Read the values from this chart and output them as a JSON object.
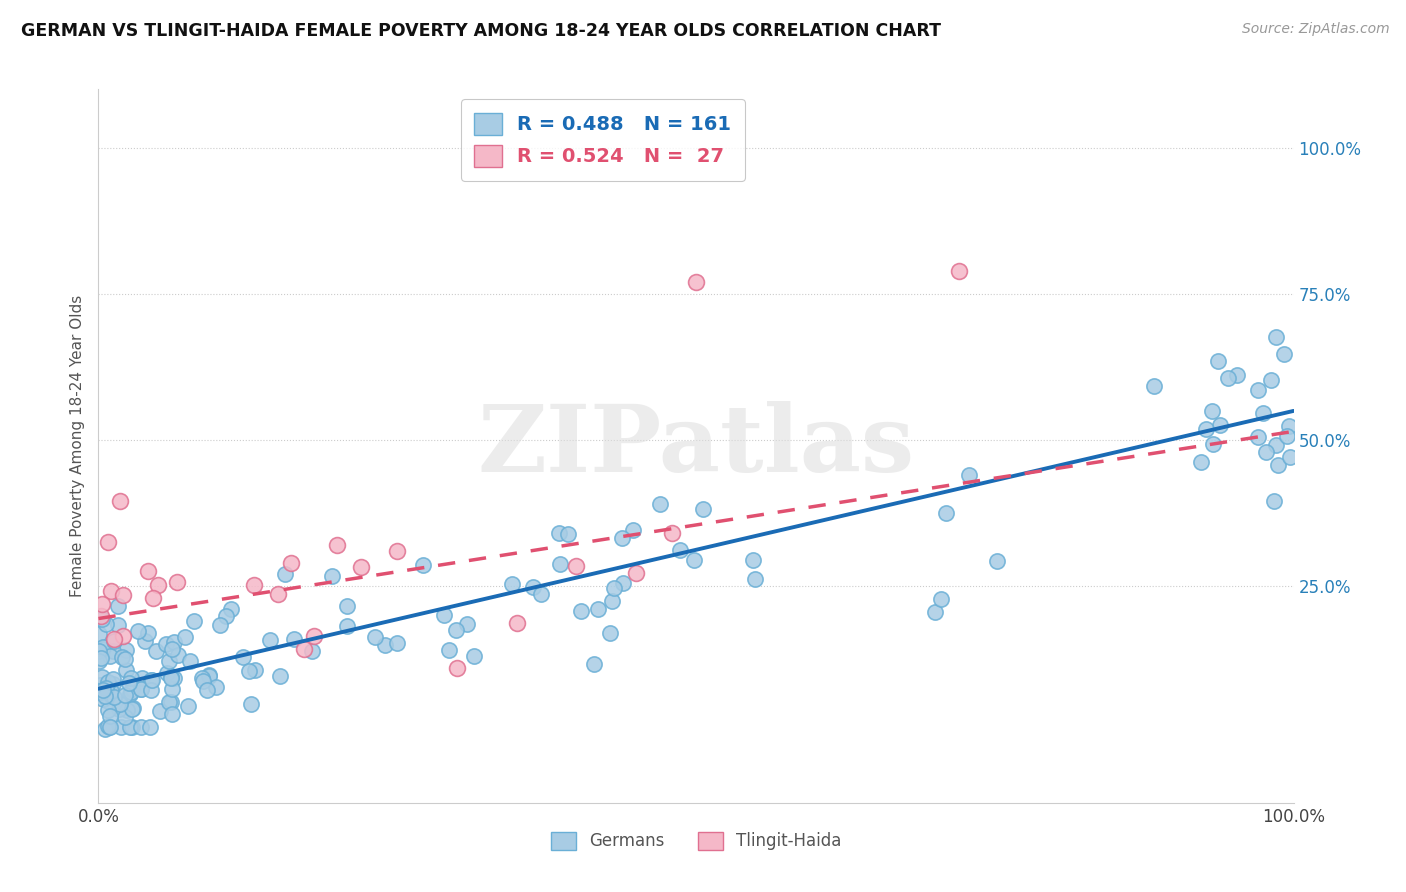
{
  "title": "GERMAN VS TLINGIT-HAIDA FEMALE POVERTY AMONG 18-24 YEAR OLDS CORRELATION CHART",
  "source": "Source: ZipAtlas.com",
  "ylabel": "Female Poverty Among 18-24 Year Olds",
  "xlim": [
    0.0,
    1.0
  ],
  "ylim": [
    -0.12,
    1.1
  ],
  "german_R": 0.488,
  "german_N": 161,
  "tlingit_R": 0.524,
  "tlingit_N": 27,
  "german_color": "#a8cce4",
  "tlingit_color": "#f5b8c8",
  "german_line_color": "#1a6bb5",
  "tlingit_line_color": "#e05070",
  "german_line_intercept": 0.075,
  "german_line_slope": 0.475,
  "tlingit_line_intercept": 0.195,
  "tlingit_line_slope": 0.32,
  "background_color": "#ffffff",
  "grid_color": "#cccccc",
  "ytick_color": "#2980b9",
  "yticks": [
    0.25,
    0.5,
    0.75,
    1.0
  ],
  "ytick_labels": [
    "25.0%",
    "50.0%",
    "75.0%",
    "100.0%"
  ],
  "xtick_labels": [
    "0.0%",
    "100.0%"
  ]
}
